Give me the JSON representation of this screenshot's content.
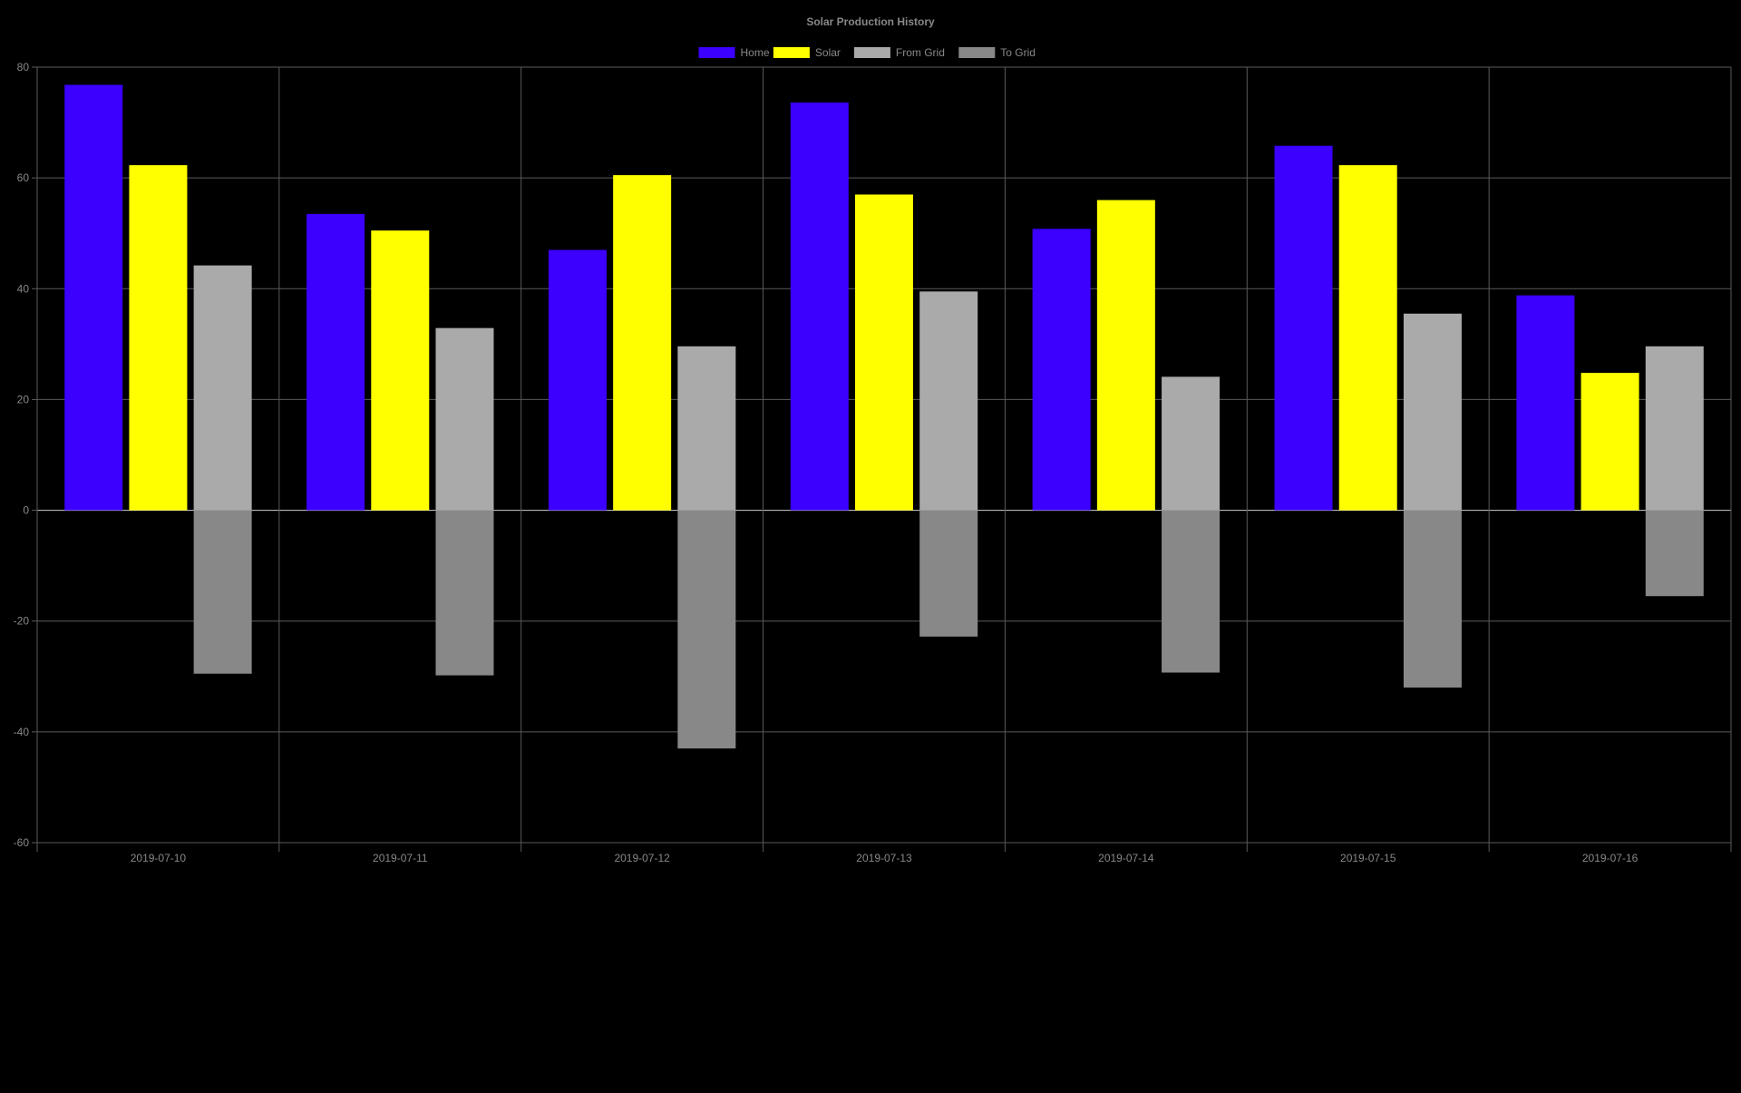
{
  "chart_data": {
    "type": "bar",
    "title": "Solar Production History",
    "categories": [
      "2019-07-10",
      "2019-07-11",
      "2019-07-12",
      "2019-07-13",
      "2019-07-14",
      "2019-07-15",
      "2019-07-16"
    ],
    "ylim": [
      -60,
      80
    ],
    "yticks": [
      80,
      60,
      40,
      20,
      0,
      -20,
      -40,
      -60
    ],
    "grid": true,
    "legend_position": "top",
    "background_color": "#000000",
    "text_color": "#888888",
    "series": [
      {
        "name": "Home",
        "color": "#3c00ff",
        "values": [
          76.8,
          53.5,
          47.0,
          73.6,
          50.8,
          65.8,
          38.8
        ]
      },
      {
        "name": "Solar",
        "color": "#ffff00",
        "values": [
          62.3,
          50.5,
          60.5,
          57.0,
          56.0,
          62.3,
          24.8
        ]
      },
      {
        "name": "From Grid",
        "color": "#aaaaaa",
        "values": [
          44.2,
          32.9,
          29.6,
          39.5,
          24.1,
          35.5,
          29.6
        ]
      },
      {
        "name": "To Grid",
        "color": "#888888",
        "values": [
          -29.5,
          -29.8,
          -43.0,
          -22.8,
          -29.3,
          -32.0,
          -15.5
        ]
      }
    ],
    "stacking": {
      "From Grid": "grid",
      "To Grid": "grid"
    }
  }
}
